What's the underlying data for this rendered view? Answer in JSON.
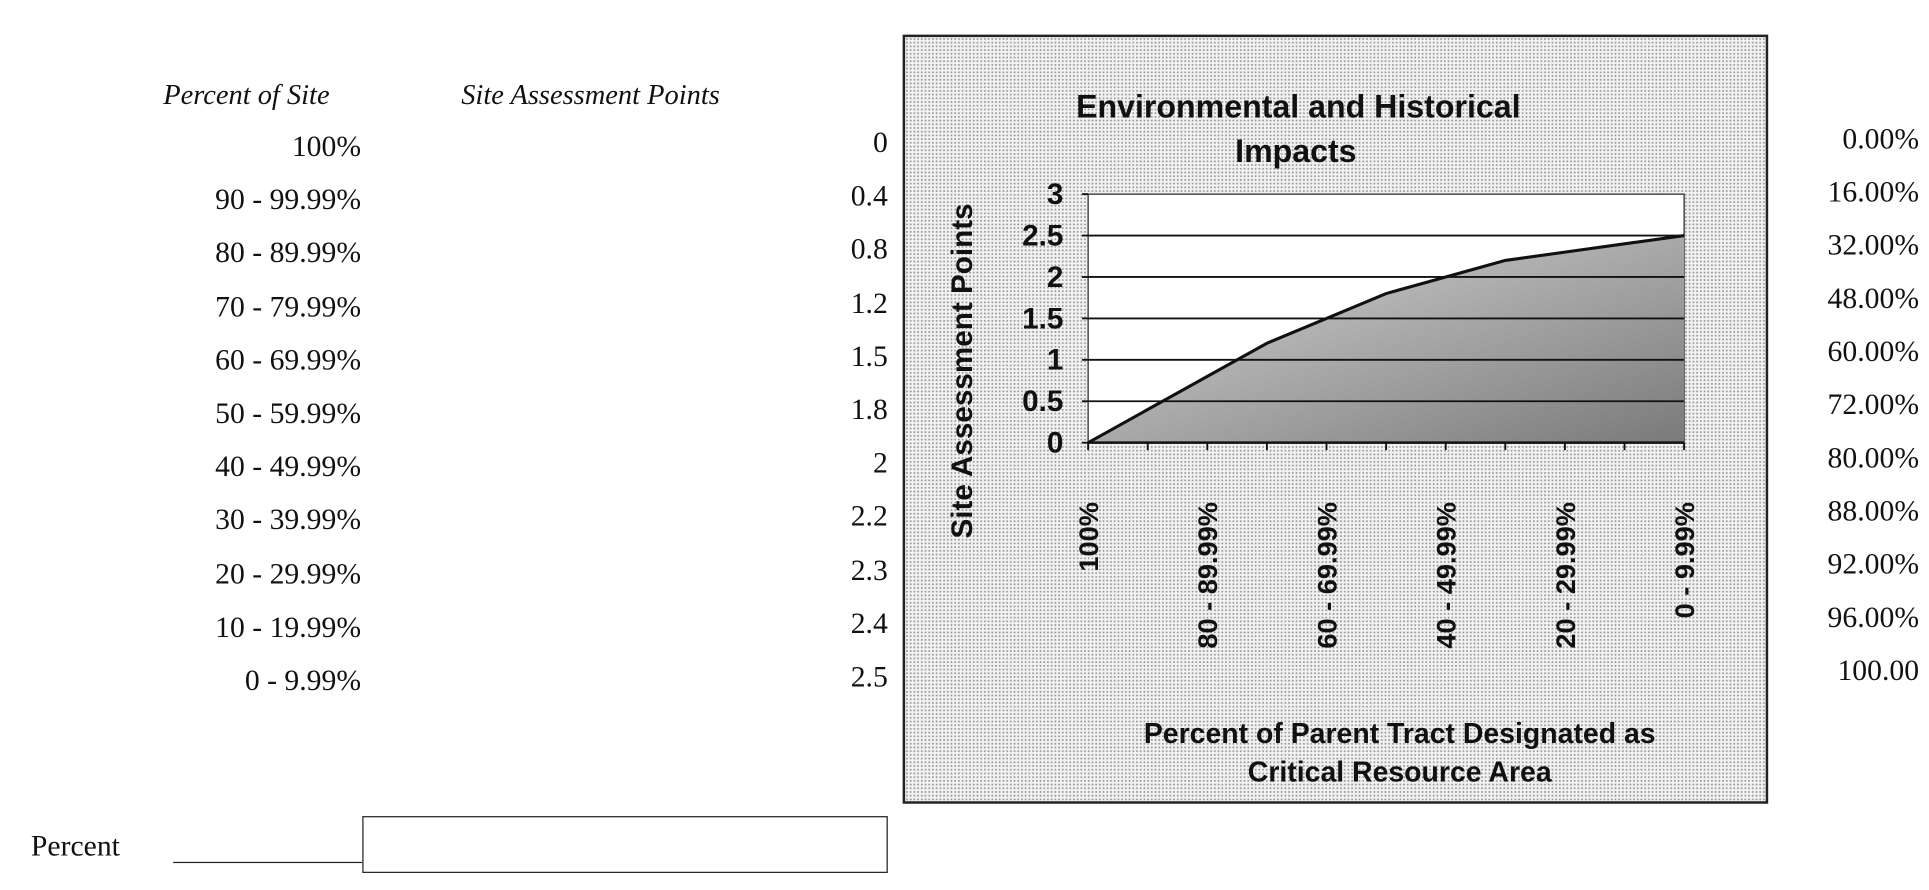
{
  "table": {
    "header_percent": "Percent of Site",
    "header_points": "Site Assessment Points",
    "rows": [
      {
        "percent": "100%",
        "points": "0",
        "cumulative": "0.00%"
      },
      {
        "percent": "90 - 99.99%",
        "points": "0.4",
        "cumulative": "16.00%"
      },
      {
        "percent": "80 - 89.99%",
        "points": "0.8",
        "cumulative": "32.00%"
      },
      {
        "percent": "70 - 79.99%",
        "points": "1.2",
        "cumulative": "48.00%"
      },
      {
        "percent": "60 - 69.99%",
        "points": "1.5",
        "cumulative": "60.00%"
      },
      {
        "percent": "50 - 59.99%",
        "points": "1.8",
        "cumulative": "72.00%"
      },
      {
        "percent": "40 - 49.99%",
        "points": "2",
        "cumulative": "80.00%"
      },
      {
        "percent": "30 - 39.99%",
        "points": "2.2",
        "cumulative": "88.00%"
      },
      {
        "percent": "20 - 29.99%",
        "points": "2.3",
        "cumulative": "92.00%"
      },
      {
        "percent": "10 - 19.99%",
        "points": "2.4",
        "cumulative": "96.00%"
      },
      {
        "percent": "0 - 9.99%",
        "points": "2.5",
        "cumulative": "100.00"
      }
    ]
  },
  "form": {
    "percent_label": "Percent",
    "percent_value": ""
  },
  "chart_data": {
    "type": "area",
    "title": [
      "Environmental and Historical",
      "Impacts"
    ],
    "xlabel": [
      "Percent of Parent Tract Designated as",
      "Critical Resource Area"
    ],
    "ylabel": "Site Assessment Points",
    "categories": [
      "100%",
      "90 - 99.99%",
      "80 - 89.99%",
      "70 - 79.99%",
      "60 - 69.99%",
      "50 - 59.99%",
      "40 - 49.99%",
      "30 - 39.99%",
      "20 - 29.99%",
      "10 - 19.99%",
      "0 - 9.99%"
    ],
    "x_tick_labels": [
      "100%",
      "80 - 89.99%",
      "60 - 69.99%",
      "40 - 49.99%",
      "20 - 29.99%",
      "0 - 9.99%"
    ],
    "values": [
      0,
      0.4,
      0.8,
      1.2,
      1.5,
      1.8,
      2,
      2.2,
      2.3,
      2.4,
      2.5
    ],
    "ylim": [
      0,
      3
    ],
    "y_ticks": [
      "0",
      "0.5",
      "1",
      "1.5",
      "2",
      "2.5",
      "3"
    ],
    "grid": true
  }
}
